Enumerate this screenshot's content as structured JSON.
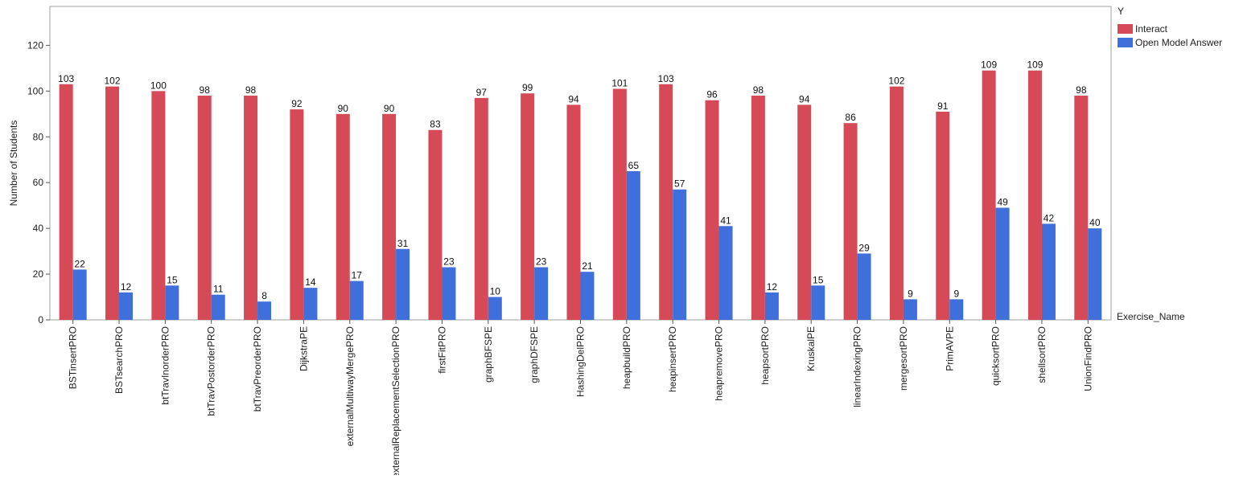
{
  "chart_data": {
    "type": "bar",
    "title": "",
    "xlabel": "Exercise_Name",
    "ylabel": "Number of Students",
    "ylim": [
      0,
      137
    ],
    "yticks": [
      0,
      20,
      40,
      60,
      80,
      100,
      120
    ],
    "grid": false,
    "legend": {
      "title": "Y",
      "position": "top-right"
    },
    "categories": [
      "BSTinsertPRO",
      "BSTsearchPRO",
      "btTravInorderPRO",
      "btTravPostorderPRO",
      "btTravPreorderPRO",
      "DijkstraPE",
      "externalMultiwayMergePRO",
      "externalReplacementSelectionPRO",
      "firstFitPRO",
      "graphBFSPE",
      "graphDFSPE",
      "HashingDelPRO",
      "heapbuildPRO",
      "heapinsertPRO",
      "heapremovePRO",
      "heapsortPRO",
      "KruskalPE",
      "linearIndexingPRO",
      "mergesortPRO",
      "PrimAVPE",
      "quicksortPRO",
      "shellsortPRO",
      "UnionFindPRO"
    ],
    "series": [
      {
        "name": "Interact",
        "color": "#d64a58",
        "values": [
          103,
          102,
          100,
          98,
          98,
          92,
          90,
          90,
          83,
          97,
          99,
          94,
          101,
          103,
          96,
          98,
          94,
          86,
          102,
          91,
          109,
          109,
          98
        ]
      },
      {
        "name": "Open Model Answer",
        "color": "#3f6fdb",
        "values": [
          22,
          12,
          15,
          11,
          8,
          14,
          17,
          31,
          23,
          10,
          23,
          21,
          65,
          57,
          41,
          12,
          15,
          29,
          9,
          9,
          49,
          42,
          40
        ]
      }
    ]
  }
}
